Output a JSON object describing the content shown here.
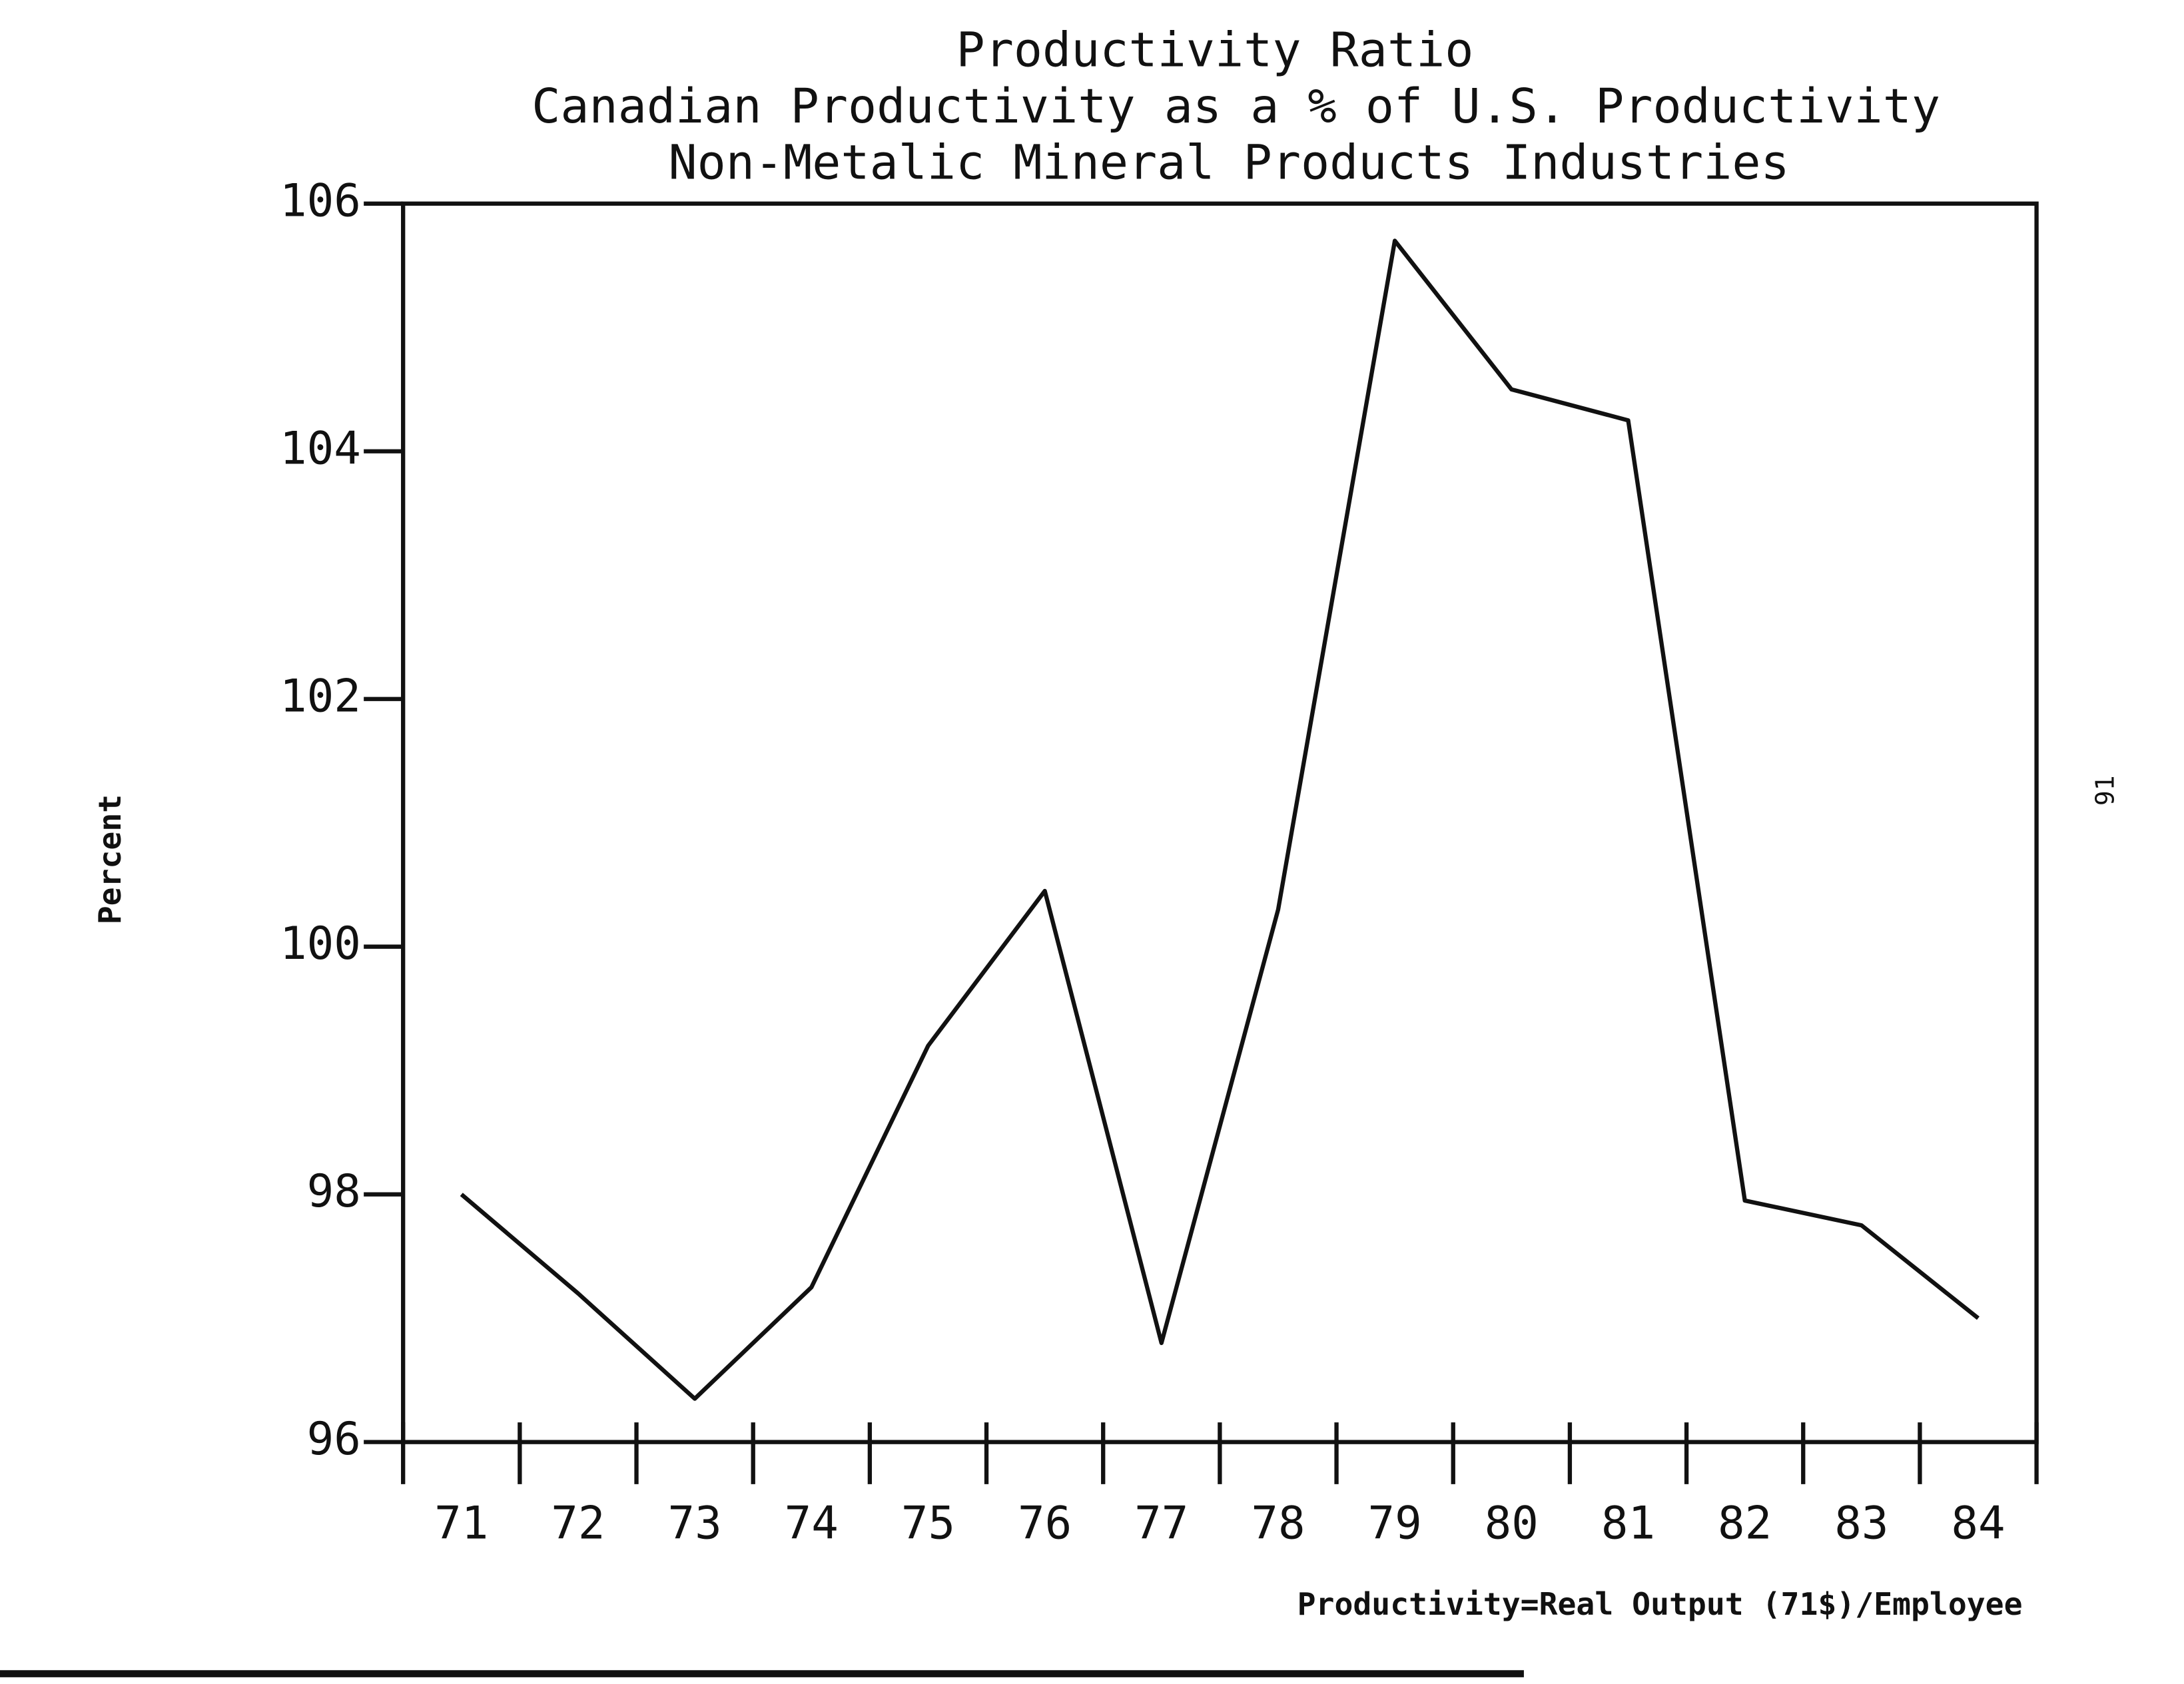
{
  "chart_data": {
    "type": "line",
    "title": "Productivity Ratio",
    "subtitle": [
      "Canadian Productivity as a % of U.S. Productivity",
      "Non-Metalic Mineral Products Industries"
    ],
    "y_label": "Percent",
    "x_note": "Productivity=Real Output (71$)/Employee",
    "page_number": "91",
    "categories": [
      "71",
      "72",
      "73",
      "74",
      "75",
      "76",
      "77",
      "78",
      "79",
      "80",
      "81",
      "82",
      "83",
      "84"
    ],
    "series": [
      {
        "name": "Productivity Ratio",
        "color": "#111111",
        "values": [
          98.0,
          97.2,
          96.35,
          97.25,
          99.2,
          100.45,
          96.8,
          100.3,
          105.7,
          104.5,
          104.25,
          97.95,
          97.75,
          97.0
        ]
      }
    ],
    "ylim": [
      96,
      106
    ],
    "yticks": [
      96,
      98,
      100,
      102,
      104,
      106
    ],
    "grid": false
  }
}
